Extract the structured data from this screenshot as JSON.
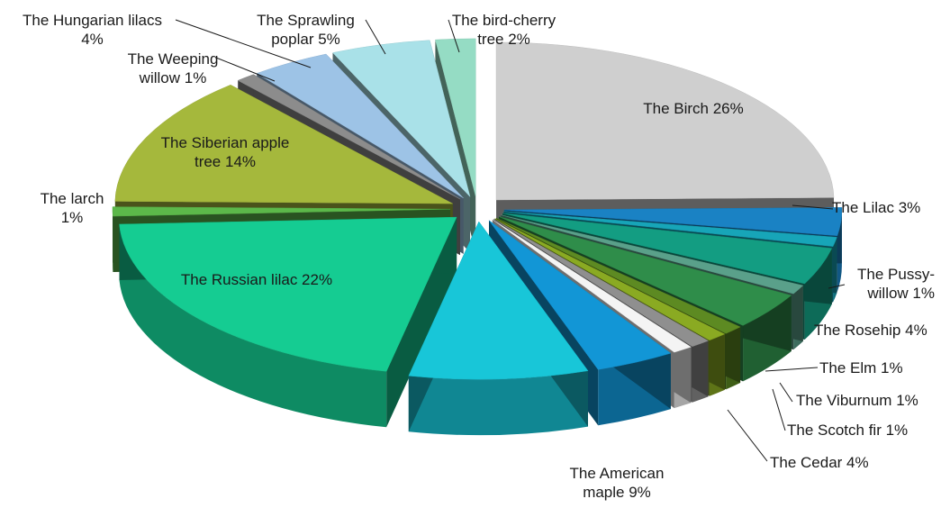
{
  "chart_data": {
    "type": "pie",
    "style": "3d-exploded",
    "slices": [
      {
        "label": "The Birch 26%",
        "name": "The Birch",
        "value": 26,
        "color": "#cfcfcf"
      },
      {
        "label": "The Lilac 3%",
        "name": "The Lilac",
        "value": 3,
        "color": "#1a82c4"
      },
      {
        "label": "",
        "name": "",
        "value": 1,
        "color": "#17a5b8"
      },
      {
        "label": "",
        "name": "",
        "value": 4,
        "color": "#139d82"
      },
      {
        "label": "The Pussy-\nwillow 1%",
        "name": "The Pussy-willow",
        "value": 1,
        "color": "#5aa08a"
      },
      {
        "label": "The Rosehip 4%",
        "name": "The Rosehip",
        "value": 4,
        "color": "#2f8d4a"
      },
      {
        "label": "The Elm 1%",
        "name": "The Elm",
        "value": 1,
        "color": "#5d8a22"
      },
      {
        "label": "The Viburnum 1%",
        "name": "The Viburnum",
        "value": 1,
        "color": "#8aaa22"
      },
      {
        "label": "The Scotch fir 1%",
        "name": "The Scotch fir",
        "value": 1,
        "color": "#8f8f8f"
      },
      {
        "label": "",
        "name": "",
        "value": 1,
        "color": "#f4f4f4"
      },
      {
        "label": "The Cedar 4%",
        "name": "The Cedar",
        "value": 4,
        "color": "#1296d6"
      },
      {
        "label": "The American\nmaple 9%",
        "name": "The American maple",
        "value": 9,
        "color": "#18c6d8"
      },
      {
        "label": "The Russian lilac 22%",
        "name": "The Russian lilac",
        "value": 22,
        "color": "#15cc92"
      },
      {
        "label": "The larch\n1%",
        "name": "The larch",
        "value": 1,
        "color": "#5cb84a"
      },
      {
        "label": "The Siberian apple\ntree 14%",
        "name": "The Siberian apple tree",
        "value": 14,
        "color": "#a5b83c"
      },
      {
        "label": "The Weeping\nwillow 1%",
        "name": "The Weeping willow",
        "value": 1,
        "color": "#8c8c8c"
      },
      {
        "label": "The Hungarian lilacs\n4%",
        "name": "The Hungarian lilacs",
        "value": 4,
        "color": "#9dc3e6"
      },
      {
        "label": "The Sprawling\npoplar 5%",
        "name": "The Sprawling poplar",
        "value": 5,
        "color": "#a9e1e8"
      },
      {
        "label": "The bird-cherry\ntree 2%",
        "name": "The bird-cherry tree",
        "value": 2,
        "color": "#95dcc4"
      }
    ]
  }
}
